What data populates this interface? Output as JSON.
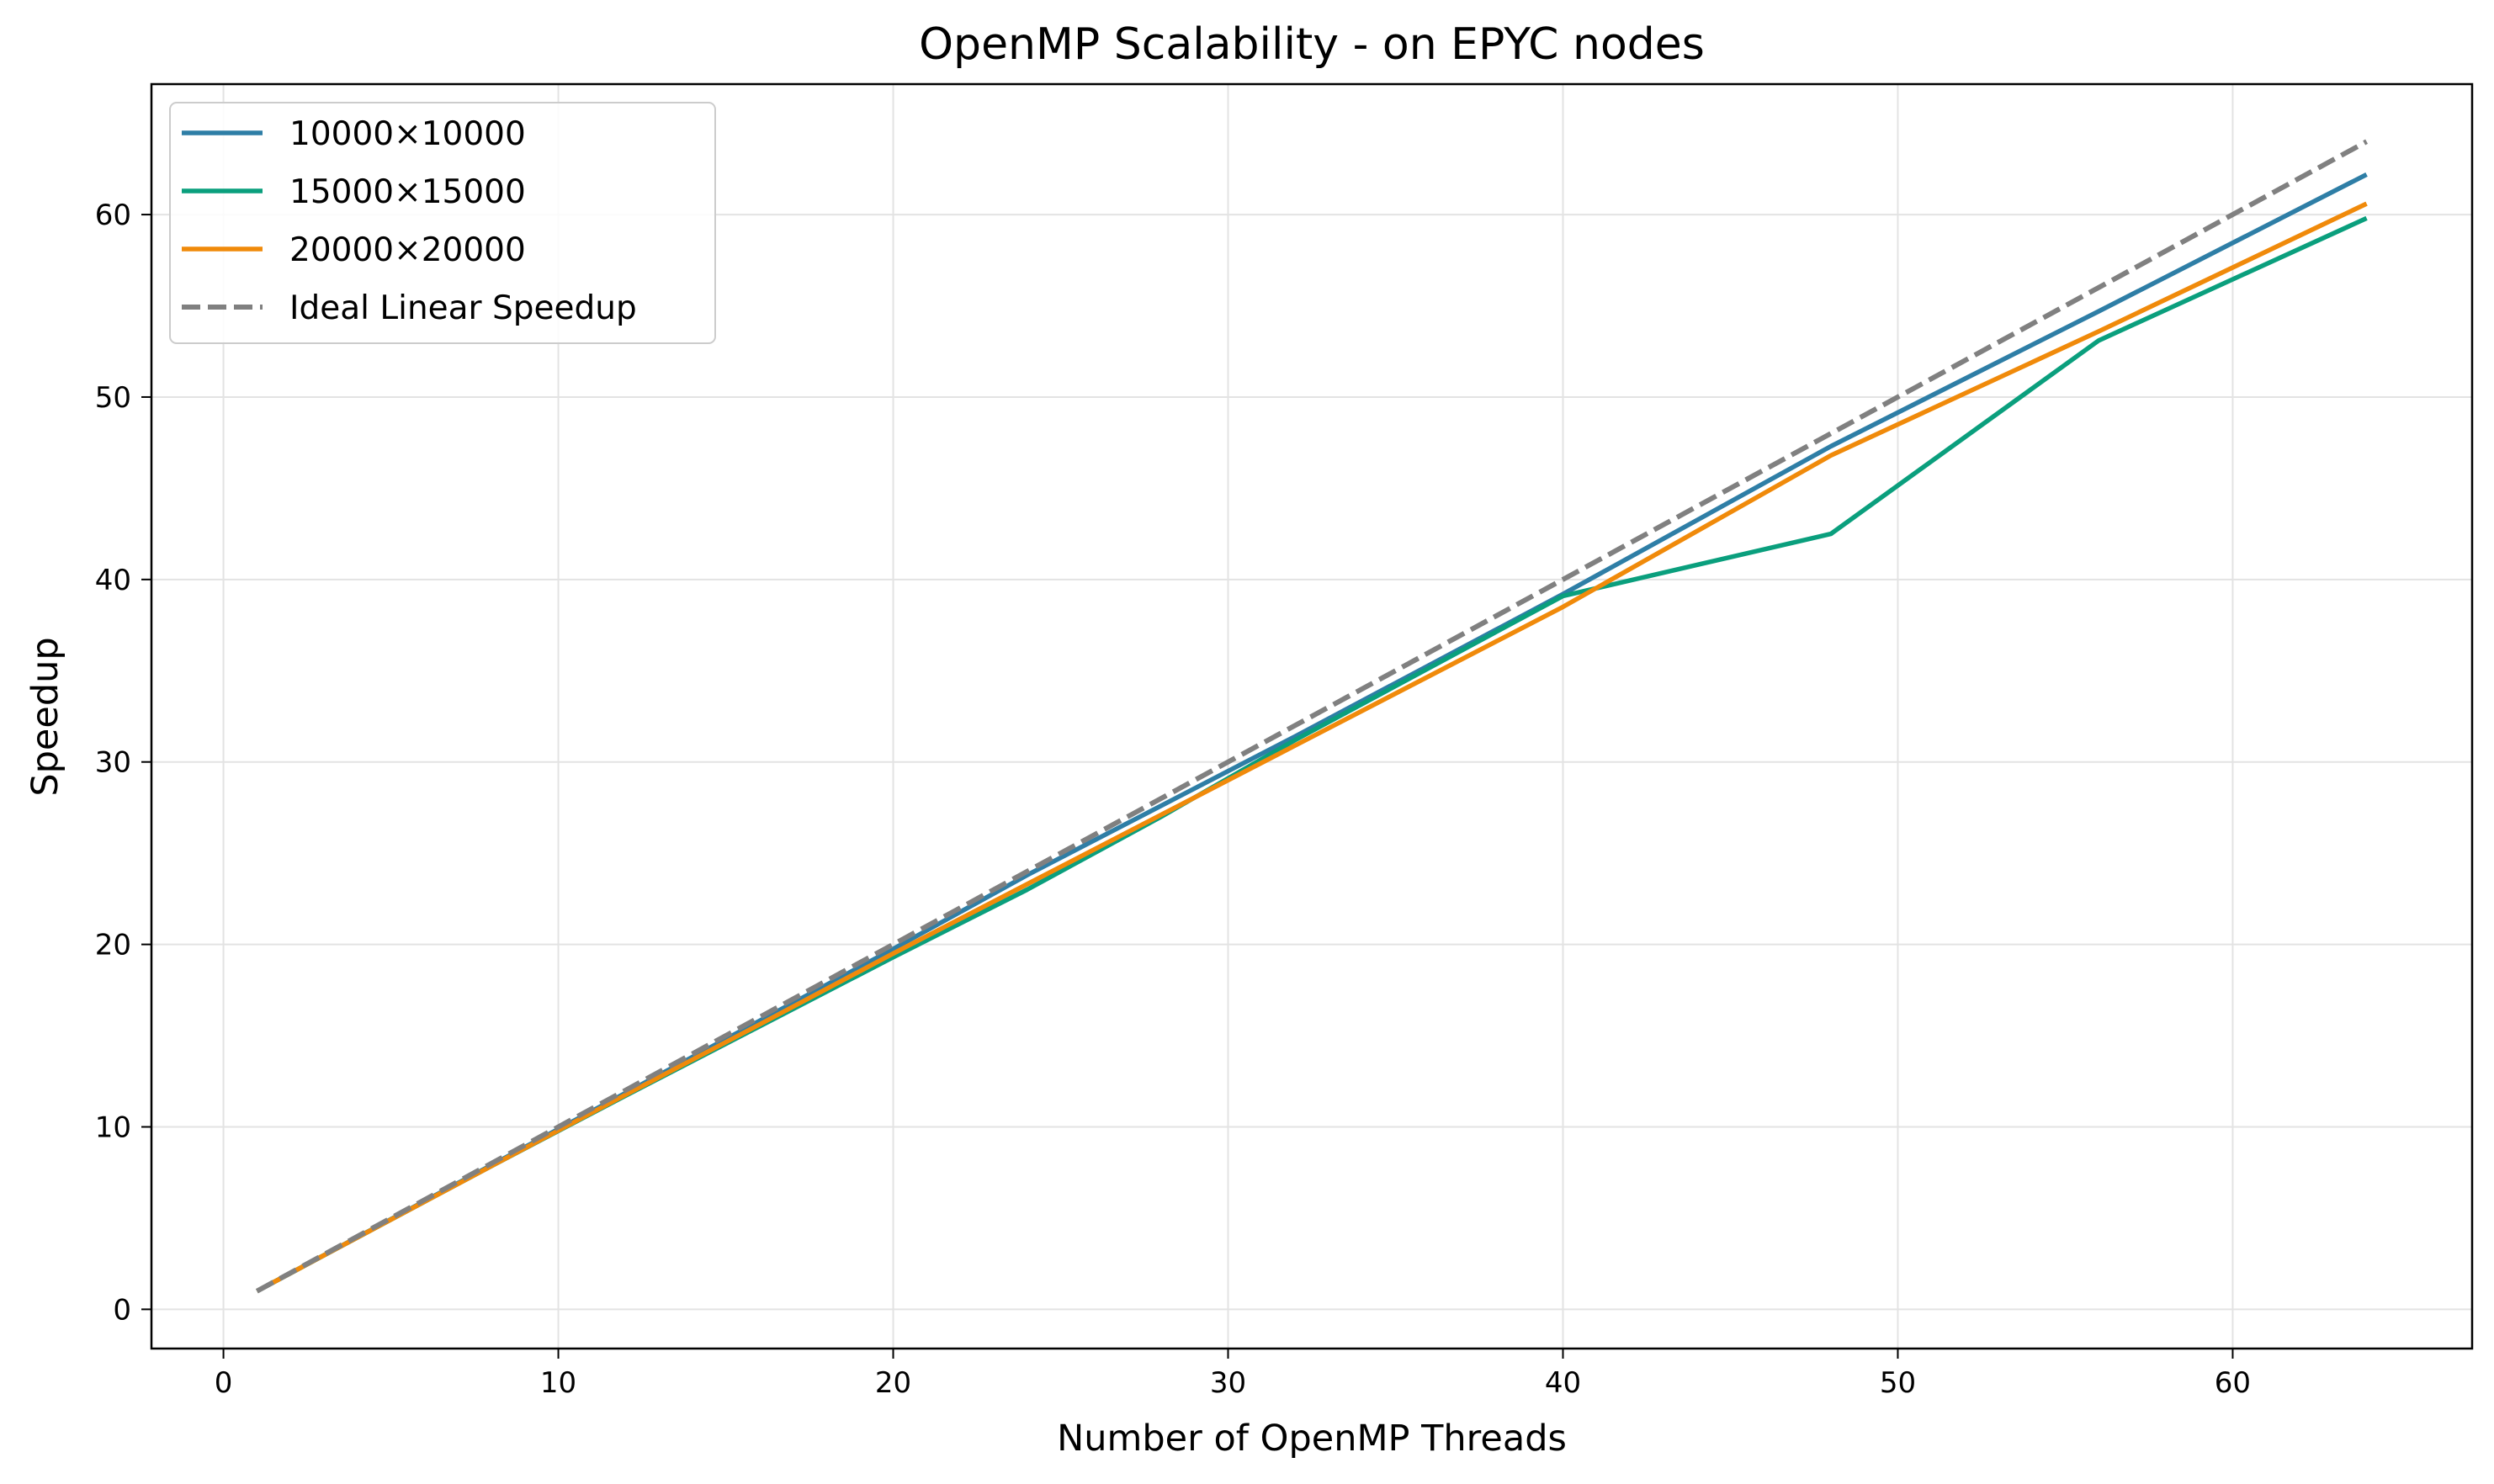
{
  "chart_data": {
    "type": "line",
    "title": "OpenMP Scalability - on EPYC nodes",
    "xlabel": "Number of OpenMP Threads",
    "ylabel": "Speedup",
    "xlim": [
      -2.15,
      67.15
    ],
    "ylim": [
      -2.15,
      67.15
    ],
    "xticks": [
      0,
      10,
      20,
      30,
      40,
      50,
      60
    ],
    "yticks": [
      0,
      10,
      20,
      30,
      40,
      50,
      60
    ],
    "grid": true,
    "legend_position": "top-left",
    "series": [
      {
        "name": "10000×10000",
        "color": "#2e7ea6",
        "style": "solid",
        "x": [
          1,
          2,
          4,
          8,
          12,
          16,
          20,
          24,
          28,
          32,
          40,
          48,
          56,
          64
        ],
        "y": [
          1,
          1.98,
          3.95,
          7.9,
          11.85,
          15.8,
          19.75,
          23.8,
          27.6,
          31.4,
          39.2,
          47.3,
          54.7,
          62.2
        ]
      },
      {
        "name": "15000×15000",
        "color": "#0a9f7d",
        "style": "solid",
        "x": [
          1,
          2,
          4,
          8,
          12,
          16,
          20,
          24,
          28,
          32,
          40,
          48,
          56,
          64
        ],
        "y": [
          1,
          1.98,
          3.94,
          7.85,
          11.7,
          15.5,
          19.3,
          23.0,
          27.0,
          31.2,
          39.1,
          42.5,
          53.1,
          59.8
        ]
      },
      {
        "name": "20000×20000",
        "color": "#f08a0a",
        "style": "solid",
        "x": [
          1,
          2,
          4,
          8,
          12,
          16,
          20,
          24,
          28,
          32,
          40,
          48,
          56,
          64
        ],
        "y": [
          1,
          1.98,
          3.94,
          7.85,
          11.75,
          15.6,
          19.5,
          23.3,
          27.1,
          30.9,
          38.5,
          46.8,
          53.6,
          60.6
        ]
      },
      {
        "name": "Ideal Linear Speedup",
        "color": "#808080",
        "style": "dashed",
        "x": [
          1,
          64
        ],
        "y": [
          1,
          64
        ]
      }
    ]
  }
}
